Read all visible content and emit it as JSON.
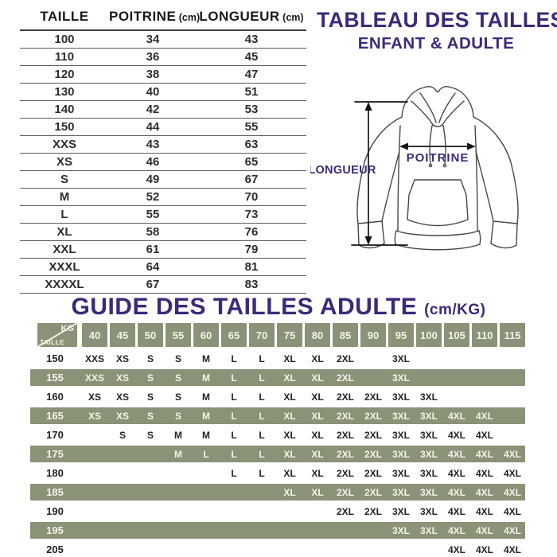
{
  "colors": {
    "purple": "#3b2a7a",
    "green": "#8a9277",
    "line": "#5a5a5a"
  },
  "main_title": {
    "line1": "TABLEAU DES TAILLES",
    "line2": "ENFANT & ADULTE"
  },
  "diagram": {
    "length_label": "LONGUEUR",
    "chest_label": "POITRINE"
  },
  "guide_title": {
    "text": "GUIDE DES TAILLES ADULTE",
    "unit": "(cm/KG)"
  },
  "size_table": {
    "columns": [
      {
        "label": "TAILLE",
        "unit": ""
      },
      {
        "label": "POITRINE",
        "unit": "(cm)"
      },
      {
        "label": "LONGUEUR",
        "unit": "(cm)"
      }
    ],
    "rows": [
      [
        "100",
        "34",
        "43"
      ],
      [
        "110",
        "36",
        "45"
      ],
      [
        "120",
        "38",
        "47"
      ],
      [
        "130",
        "40",
        "51"
      ],
      [
        "140",
        "42",
        "53"
      ],
      [
        "150",
        "44",
        "55"
      ],
      [
        "XXS",
        "43",
        "63"
      ],
      [
        "XS",
        "46",
        "65"
      ],
      [
        "S",
        "49",
        "67"
      ],
      [
        "M",
        "52",
        "70"
      ],
      [
        "L",
        "55",
        "73"
      ],
      [
        "XL",
        "58",
        "76"
      ],
      [
        "XXL",
        "61",
        "79"
      ],
      [
        "XXXL",
        "64",
        "81"
      ],
      [
        "XXXXL",
        "67",
        "83"
      ]
    ]
  },
  "guide_table": {
    "corner": {
      "top": "KG",
      "bottom": "TAILLE"
    },
    "kg_columns": [
      "40",
      "45",
      "50",
      "55",
      "60",
      "65",
      "70",
      "75",
      "80",
      "85",
      "90",
      "95",
      "100",
      "105",
      "110",
      "115"
    ],
    "rows": [
      {
        "taille": "150",
        "highlight": false,
        "cells": [
          "XXS",
          "XS",
          "S",
          "S",
          "M",
          "L",
          "L",
          "XL",
          "XL",
          "2XL",
          "",
          "3XL",
          "",
          "",
          "",
          ""
        ]
      },
      {
        "taille": "155",
        "highlight": true,
        "cells": [
          "XXS",
          "XS",
          "S",
          "S",
          "M",
          "L",
          "L",
          "XL",
          "XL",
          "2XL",
          "",
          "3XL",
          "",
          "",
          "",
          ""
        ]
      },
      {
        "taille": "160",
        "highlight": false,
        "cells": [
          "XS",
          "XS",
          "S",
          "S",
          "M",
          "L",
          "L",
          "XL",
          "XL",
          "2XL",
          "2XL",
          "3XL",
          "3XL",
          "",
          "",
          ""
        ]
      },
      {
        "taille": "165",
        "highlight": true,
        "cells": [
          "XS",
          "XS",
          "S",
          "S",
          "M",
          "L",
          "L",
          "XL",
          "XL",
          "2XL",
          "2XL",
          "3XL",
          "3XL",
          "4XL",
          "4XL",
          ""
        ]
      },
      {
        "taille": "170",
        "highlight": false,
        "cells": [
          "",
          "S",
          "S",
          "M",
          "M",
          "L",
          "L",
          "XL",
          "XL",
          "2XL",
          "2XL",
          "3XL",
          "3XL",
          "4XL",
          "4XL",
          ""
        ]
      },
      {
        "taille": "175",
        "highlight": true,
        "cells": [
          "",
          "",
          "",
          "M",
          "L",
          "L",
          "L",
          "XL",
          "XL",
          "2XL",
          "2XL",
          "3XL",
          "3XL",
          "4XL",
          "4XL",
          "4XL"
        ]
      },
      {
        "taille": "180",
        "highlight": false,
        "cells": [
          "",
          "",
          "",
          "",
          "",
          "L",
          "L",
          "XL",
          "XL",
          "2XL",
          "2XL",
          "3XL",
          "3XL",
          "4XL",
          "4XL",
          "4XL"
        ]
      },
      {
        "taille": "185",
        "highlight": true,
        "cells": [
          "",
          "",
          "",
          "",
          "",
          "",
          "",
          "XL",
          "XL",
          "2XL",
          "2XL",
          "3XL",
          "3XL",
          "4XL",
          "4XL",
          "4XL"
        ]
      },
      {
        "taille": "190",
        "highlight": false,
        "cells": [
          "",
          "",
          "",
          "",
          "",
          "",
          "",
          "",
          "",
          "2XL",
          "2XL",
          "3XL",
          "3XL",
          "4XL",
          "4XL",
          "4XL"
        ]
      },
      {
        "taille": "195",
        "highlight": true,
        "cells": [
          "",
          "",
          "",
          "",
          "",
          "",
          "",
          "",
          "",
          "",
          "",
          "3XL",
          "3XL",
          "4XL",
          "4XL",
          "4XL"
        ]
      },
      {
        "taille": "205",
        "highlight": false,
        "cells": [
          "",
          "",
          "",
          "",
          "",
          "",
          "",
          "",
          "",
          "",
          "",
          "",
          "",
          "4XL",
          "4XL",
          "4XL"
        ]
      }
    ]
  }
}
